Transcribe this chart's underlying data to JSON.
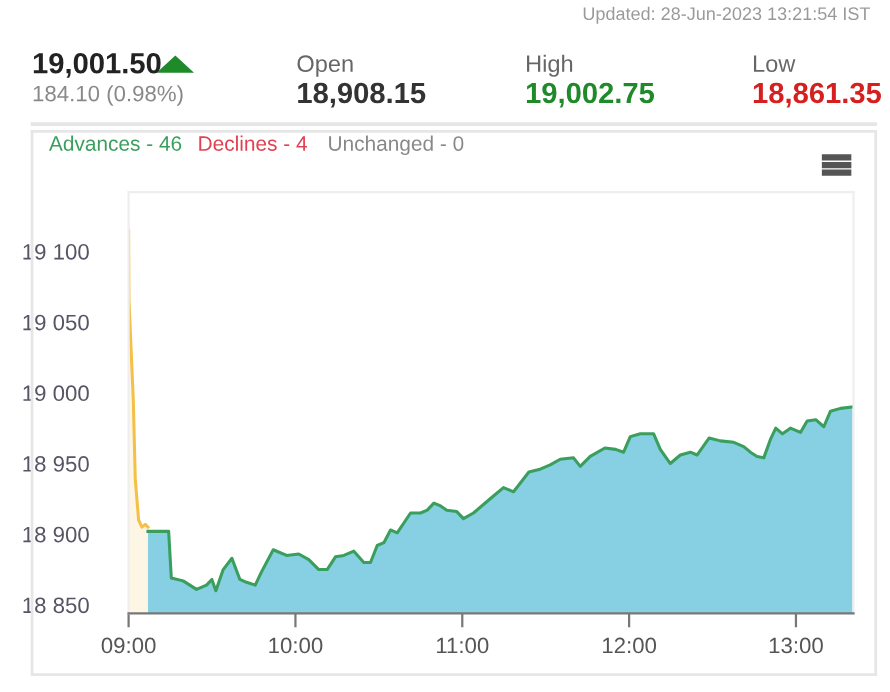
{
  "chart_data": {
    "type": "area",
    "title": "19,001.50",
    "annotations": [
      "Updated: 28-Jun-2023 13:21:54 IST",
      "184.10 (0.98%)",
      "Open",
      "18,908.15",
      "High",
      "19,002.75",
      "Low",
      "18,861.35",
      "Advances - 46",
      "Declines - 4",
      "Unchanged - 0"
    ],
    "xlim": [
      9,
      13.345
    ],
    "ylim": [
      18844,
      19142
    ],
    "xticks": [
      {
        "value": 9,
        "label": "09:00"
      },
      {
        "value": 10,
        "label": "10:00"
      },
      {
        "value": 11,
        "label": "11:00"
      },
      {
        "value": 12,
        "label": "12:00"
      },
      {
        "value": 13,
        "label": "13:00"
      }
    ],
    "yticks": [
      {
        "value": 18850,
        "label": "18 850"
      },
      {
        "value": 18900,
        "label": "18 900"
      },
      {
        "value": 18950,
        "label": "18 950"
      },
      {
        "value": 19000,
        "label": "19 000"
      },
      {
        "value": 19050,
        "label": "19 050"
      },
      {
        "value": 19100,
        "label": "19 100"
      }
    ],
    "grid": false,
    "legend": false,
    "series": [
      {
        "type": "area",
        "color": "#f5c04a",
        "x": [
          9.0,
          9.002,
          9.028,
          9.04,
          9.06,
          9.08,
          9.1,
          9.116
        ],
        "values": [
          19115,
          19066,
          18995,
          18939,
          18910,
          18905,
          18907,
          18905
        ]
      },
      {
        "color": "#3a9e5c",
        "x": [
          9.116,
          9.24,
          9.256,
          9.327,
          9.407,
          9.467,
          9.499,
          9.523,
          9.567,
          9.619,
          9.667,
          9.707,
          9.759,
          9.795,
          9.867,
          9.947,
          10.02,
          10.08,
          10.14,
          10.19,
          10.24,
          10.29,
          10.35,
          10.41,
          10.45,
          10.49,
          10.53,
          10.57,
          10.61,
          10.69,
          10.75,
          10.79,
          10.83,
          10.87,
          10.907,
          10.967,
          11.007,
          11.067,
          11.127,
          11.187,
          11.247,
          11.307,
          11.347,
          11.399,
          11.467,
          11.527,
          11.587,
          11.667,
          11.707,
          11.767,
          11.855,
          11.919,
          11.967,
          12.007,
          12.067,
          12.147,
          12.187,
          12.247,
          12.307,
          12.367,
          12.407,
          12.479,
          12.547,
          12.627,
          12.687,
          12.727,
          12.767,
          12.807,
          12.847,
          12.879,
          12.919,
          12.967,
          13.027,
          13.067,
          13.119,
          13.167,
          13.207,
          13.267,
          13.339
        ],
        "values": [
          18902,
          18902,
          18869,
          18867,
          18861,
          18864,
          18868,
          18860,
          18875,
          18883,
          18868,
          18866,
          18864,
          18873,
          18889,
          18885,
          18886,
          18882,
          18875,
          18875,
          18884,
          18885,
          18888,
          18880,
          18880,
          18892,
          18894,
          18903,
          18901,
          18915,
          18915,
          18917,
          18922,
          18920,
          18917,
          18916,
          18911,
          18915,
          18921,
          18927,
          18933,
          18930,
          18936,
          18944,
          18946,
          18949,
          18953,
          18954,
          18948,
          18955,
          18961,
          18960,
          18958,
          18969,
          18971,
          18971,
          18960,
          18950,
          18956,
          18958,
          18956,
          18968,
          18966,
          18965,
          18962,
          18958,
          18955,
          18954,
          18967,
          18975,
          18971,
          18975,
          18972,
          18980,
          18981,
          18976,
          18987,
          18989,
          18990
        ]
      }
    ]
  }
}
